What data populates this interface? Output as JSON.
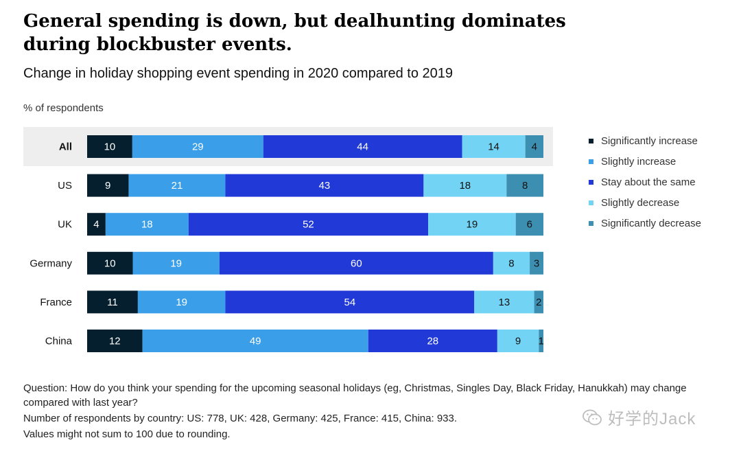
{
  "title": "General spending is down, but dealhunting dominates during blockbuster events.",
  "subtitle": "Change in holiday shopping event spending in 2020 compared to 2019",
  "unit_label": "% of respondents",
  "colors": {
    "significantly_increase": "#061f2e",
    "slightly_increase": "#3a9fe8",
    "stay_same": "#2139d6",
    "slightly_decrease": "#72d3f4",
    "significantly_decrease": "#3c8fb0",
    "highlight_row_bg": "#eeeeee"
  },
  "chart_data": {
    "type": "bar",
    "orientation": "horizontal",
    "stacked": true,
    "categories": [
      "All",
      "US",
      "UK",
      "Germany",
      "France",
      "China"
    ],
    "highlighted_category": "All",
    "series": [
      {
        "name": "Significantly increase",
        "values": [
          10,
          9,
          4,
          10,
          11,
          12
        ]
      },
      {
        "name": "Slightly increase",
        "values": [
          29,
          21,
          18,
          19,
          19,
          49
        ]
      },
      {
        "name": "Stay about the same",
        "values": [
          44,
          43,
          52,
          60,
          54,
          28
        ]
      },
      {
        "name": "Slightly decrease",
        "values": [
          14,
          18,
          19,
          8,
          13,
          9
        ]
      },
      {
        "name": "Significantly decrease",
        "values": [
          4,
          8,
          6,
          3,
          2,
          1
        ]
      }
    ],
    "legend_position": "right",
    "grid": false
  },
  "notes": [
    "Question: How do you think your spending for the upcoming seasonal holidays (eg, Christmas, Singles Day, Black Friday, Hanukkah) may change compared with last year?",
    "Number of respondents by country: US: 778, UK: 428, Germany: 425, France: 415, China: 933.",
    "Values might not sum to 100 due to rounding."
  ],
  "watermark": "好学的Jack"
}
